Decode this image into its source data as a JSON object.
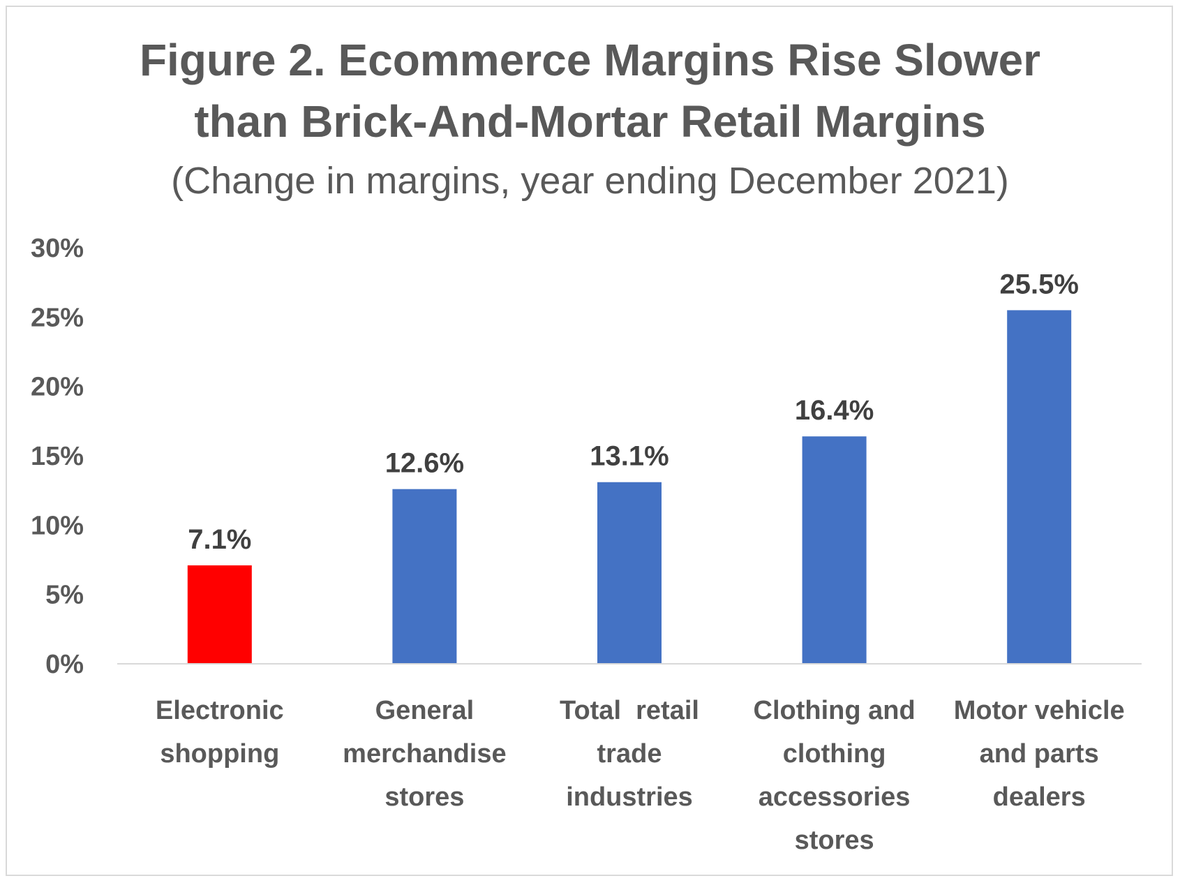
{
  "chart_data": {
    "type": "bar",
    "title_lines": [
      "Figure 2. Ecommerce Margins Rise Slower",
      "than Brick-And-Mortar Retail Margins"
    ],
    "subtitle": "(Change in margins, year ending December 2021)",
    "categories": [
      [
        "Electronic",
        "shopping"
      ],
      [
        "General",
        "merchandise",
        "stores"
      ],
      [
        "Total  retail",
        "trade",
        "industries"
      ],
      [
        "Clothing and",
        "clothing",
        "accessories",
        "stores"
      ],
      [
        "Motor vehicle",
        "and parts",
        "dealers"
      ]
    ],
    "values": [
      7.1,
      12.6,
      13.1,
      16.4,
      25.5
    ],
    "value_labels": [
      "7.1%",
      "12.6%",
      "13.1%",
      "16.4%",
      "25.5%"
    ],
    "bar_colors": [
      "#ff0000",
      "#4472c4",
      "#4472c4",
      "#4472c4",
      "#4472c4"
    ],
    "ylim": [
      0,
      30
    ],
    "yticks": [
      {
        "value": 0,
        "label": "0%"
      },
      {
        "value": 5,
        "label": "5%"
      },
      {
        "value": 10,
        "label": "10%"
      },
      {
        "value": 15,
        "label": "15%"
      },
      {
        "value": 20,
        "label": "20%"
      },
      {
        "value": 25,
        "label": "25%"
      },
      {
        "value": 30,
        "label": "30%"
      }
    ],
    "grid": false,
    "legend": "none"
  }
}
